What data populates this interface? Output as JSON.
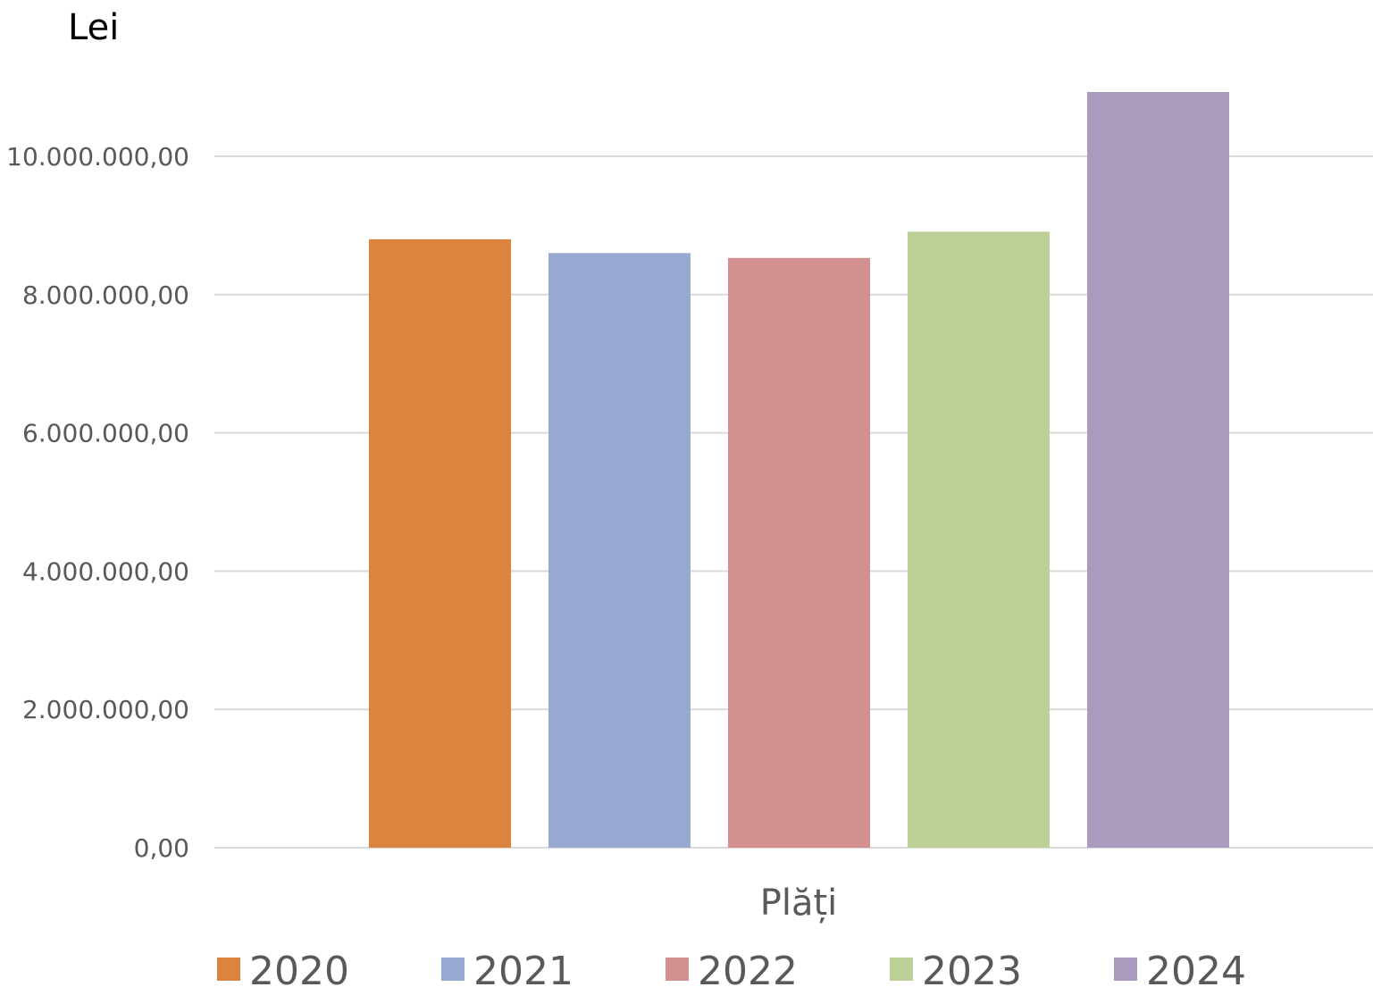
{
  "chart_data": {
    "type": "bar",
    "unit_label": "Lei",
    "category": "Plăți",
    "series": [
      {
        "name": "2020",
        "value": 8800000,
        "color": "#DB833F"
      },
      {
        "name": "2021",
        "value": 8600000,
        "color": "#95A9D1"
      },
      {
        "name": "2022",
        "value": 8530000,
        "color": "#D39090"
      },
      {
        "name": "2023",
        "value": 8910000,
        "color": "#BBCF96"
      },
      {
        "name": "2024",
        "value": 10930000,
        "color": "#A99ABE"
      }
    ],
    "y_ticks": [
      "0,00",
      "2.000.000,00",
      "4.000.000,00",
      "6.000.000,00",
      "8.000.000,00",
      "10.000.000,00"
    ],
    "ylim": [
      0,
      10000000
    ],
    "grid": true,
    "legend_position": "bottom",
    "colors": {
      "gridline": "#D9D9D9",
      "tick_text": "#595959",
      "category_text": "#595959",
      "legend_text": "#595959"
    }
  }
}
